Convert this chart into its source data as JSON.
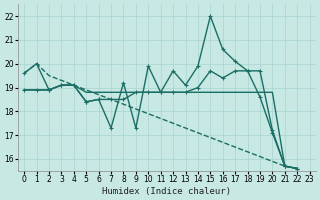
{
  "xlabel": "Humidex (Indice chaleur)",
  "background_color": "#c8e8e4",
  "grid_color": "#a8d4d0",
  "line_color": "#1a6e64",
  "xlim": [
    -0.5,
    23.5
  ],
  "ylim": [
    15.5,
    22.5
  ],
  "xticks": [
    0,
    1,
    2,
    3,
    4,
    5,
    6,
    7,
    8,
    9,
    10,
    11,
    12,
    13,
    14,
    15,
    16,
    17,
    18,
    19,
    20,
    21,
    22,
    23
  ],
  "yticks": [
    16,
    17,
    18,
    19,
    20,
    21,
    22
  ],
  "series": [
    {
      "y": [
        19.6,
        20.0,
        19.5,
        19.3,
        19.1,
        18.9,
        18.7,
        18.5,
        18.3,
        18.1,
        17.9,
        17.7,
        17.5,
        17.3,
        17.1,
        16.9,
        16.7,
        16.5,
        16.3,
        16.1,
        15.9,
        15.7,
        15.6
      ],
      "ls": "--",
      "marker": null,
      "lw": 1.0,
      "ms": 0
    },
    {
      "y": [
        18.9,
        18.9,
        18.9,
        19.1,
        19.1,
        18.8,
        18.8,
        18.8,
        18.8,
        18.8,
        18.8,
        18.8,
        18.8,
        18.8,
        18.8,
        18.8,
        18.8,
        18.8,
        18.8,
        18.8,
        18.8,
        15.7,
        15.6
      ],
      "ls": "-",
      "marker": null,
      "lw": 1.0,
      "ms": 0
    },
    {
      "y": [
        19.6,
        20.0,
        18.9,
        19.1,
        19.1,
        18.4,
        18.5,
        17.3,
        19.2,
        17.3,
        19.9,
        18.8,
        19.7,
        19.1,
        19.9,
        22.0,
        20.6,
        20.1,
        19.7,
        19.7,
        17.2,
        15.7,
        15.6
      ],
      "ls": "-",
      "marker": "+",
      "lw": 1.0,
      "ms": 3.5
    },
    {
      "y": [
        18.9,
        18.9,
        18.9,
        19.1,
        19.1,
        18.4,
        18.5,
        18.5,
        18.5,
        18.8,
        18.8,
        18.8,
        18.8,
        18.8,
        19.0,
        19.7,
        19.4,
        19.7,
        19.7,
        18.6,
        17.1,
        15.7,
        15.6
      ],
      "ls": "-",
      "marker": "+",
      "lw": 1.0,
      "ms": 3.5
    }
  ]
}
